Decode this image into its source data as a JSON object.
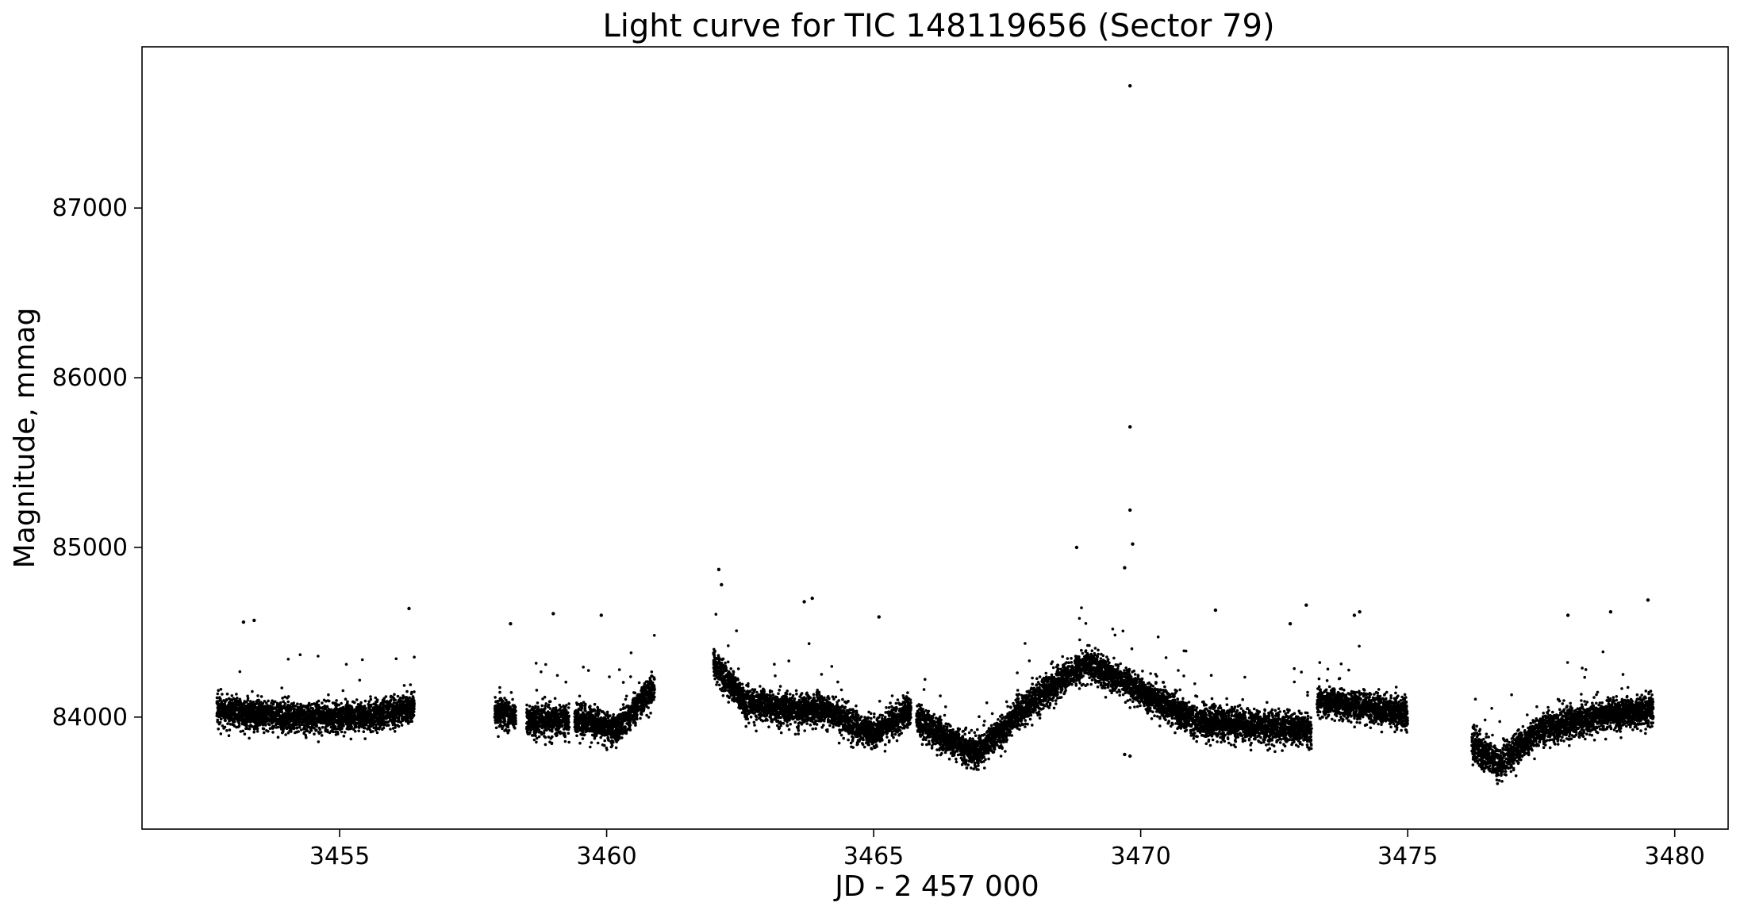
{
  "chart_data": {
    "type": "scatter",
    "title": "Light curve for TIC 148119656 (Sector 79)",
    "xlabel": "JD - 2 457 000",
    "ylabel": "Magnitude, mmag",
    "xlim": [
      3451.3,
      3481.0
    ],
    "ylim": [
      83340,
      87950
    ],
    "x_ticks": [
      3455,
      3460,
      3465,
      3470,
      3475,
      3480
    ],
    "y_ticks": [
      84000,
      85000,
      86000,
      87000
    ],
    "grid": false,
    "legend": "none",
    "marker_color": "#000000",
    "segments": [
      {
        "x_start": 3452.7,
        "x_end": 3456.4,
        "baseline": [
          [
            3452.7,
            84040
          ],
          [
            3454.0,
            84000
          ],
          [
            3455.5,
            84000
          ],
          [
            3456.4,
            84060
          ]
        ],
        "scatter": 90
      },
      {
        "x_start": 3457.9,
        "x_end": 3458.3,
        "baseline": [
          [
            3457.9,
            84030
          ],
          [
            3458.3,
            84000
          ]
        ],
        "scatter": 85
      },
      {
        "x_start": 3458.5,
        "x_end": 3459.3,
        "baseline": [
          [
            3458.5,
            83980
          ],
          [
            3459.3,
            83980
          ]
        ],
        "scatter": 90
      },
      {
        "x_start": 3459.4,
        "x_end": 3460.9,
        "baseline": [
          [
            3459.4,
            83990
          ],
          [
            3460.2,
            83930
          ],
          [
            3460.9,
            84180
          ]
        ],
        "scatter": 90
      },
      {
        "x_start": 3462.0,
        "x_end": 3465.7,
        "baseline": [
          [
            3462.0,
            84320
          ],
          [
            3462.6,
            84080
          ],
          [
            3463.5,
            84040
          ],
          [
            3464.0,
            84050
          ],
          [
            3465.0,
            83900
          ],
          [
            3465.7,
            84050
          ]
        ],
        "scatter": 95
      },
      {
        "x_start": 3465.8,
        "x_end": 3473.2,
        "baseline": [
          [
            3465.8,
            83980
          ],
          [
            3466.9,
            83780
          ],
          [
            3468.0,
            84100
          ],
          [
            3469.0,
            84320
          ],
          [
            3470.0,
            84150
          ],
          [
            3471.0,
            83980
          ],
          [
            3473.2,
            83920
          ]
        ],
        "scatter": 95
      },
      {
        "x_start": 3473.3,
        "x_end": 3475.0,
        "baseline": [
          [
            3473.3,
            84100
          ],
          [
            3474.2,
            84060
          ],
          [
            3475.0,
            84020
          ]
        ],
        "scatter": 90
      },
      {
        "x_start": 3476.2,
        "x_end": 3479.6,
        "baseline": [
          [
            3476.2,
            83850
          ],
          [
            3476.7,
            83720
          ],
          [
            3477.5,
            83930
          ],
          [
            3478.5,
            84000
          ],
          [
            3479.6,
            84050
          ]
        ],
        "scatter": 95
      }
    ],
    "outliers": [
      {
        "x": 3469.8,
        "y": 87720
      },
      {
        "x": 3469.8,
        "y": 85710
      },
      {
        "x": 3469.8,
        "y": 85220
      },
      {
        "x": 3469.85,
        "y": 85020
      },
      {
        "x": 3468.8,
        "y": 85000
      },
      {
        "x": 3469.7,
        "y": 84880
      },
      {
        "x": 3462.1,
        "y": 84870
      },
      {
        "x": 3462.15,
        "y": 84780
      },
      {
        "x": 3456.3,
        "y": 84640
      },
      {
        "x": 3479.5,
        "y": 84690
      },
      {
        "x": 3463.7,
        "y": 84680
      },
      {
        "x": 3463.85,
        "y": 84700
      },
      {
        "x": 3453.2,
        "y": 84560
      },
      {
        "x": 3453.4,
        "y": 84570
      },
      {
        "x": 3458.2,
        "y": 84550
      },
      {
        "x": 3459.0,
        "y": 84610
      },
      {
        "x": 3459.9,
        "y": 84600
      },
      {
        "x": 3465.1,
        "y": 84590
      },
      {
        "x": 3471.4,
        "y": 84630
      },
      {
        "x": 3472.8,
        "y": 84550
      },
      {
        "x": 3473.1,
        "y": 84660
      },
      {
        "x": 3474.0,
        "y": 84600
      },
      {
        "x": 3474.1,
        "y": 84620
      },
      {
        "x": 3478.0,
        "y": 84600
      },
      {
        "x": 3478.8,
        "y": 84620
      },
      {
        "x": 3469.7,
        "y": 83780
      },
      {
        "x": 3469.8,
        "y": 83770
      }
    ]
  }
}
